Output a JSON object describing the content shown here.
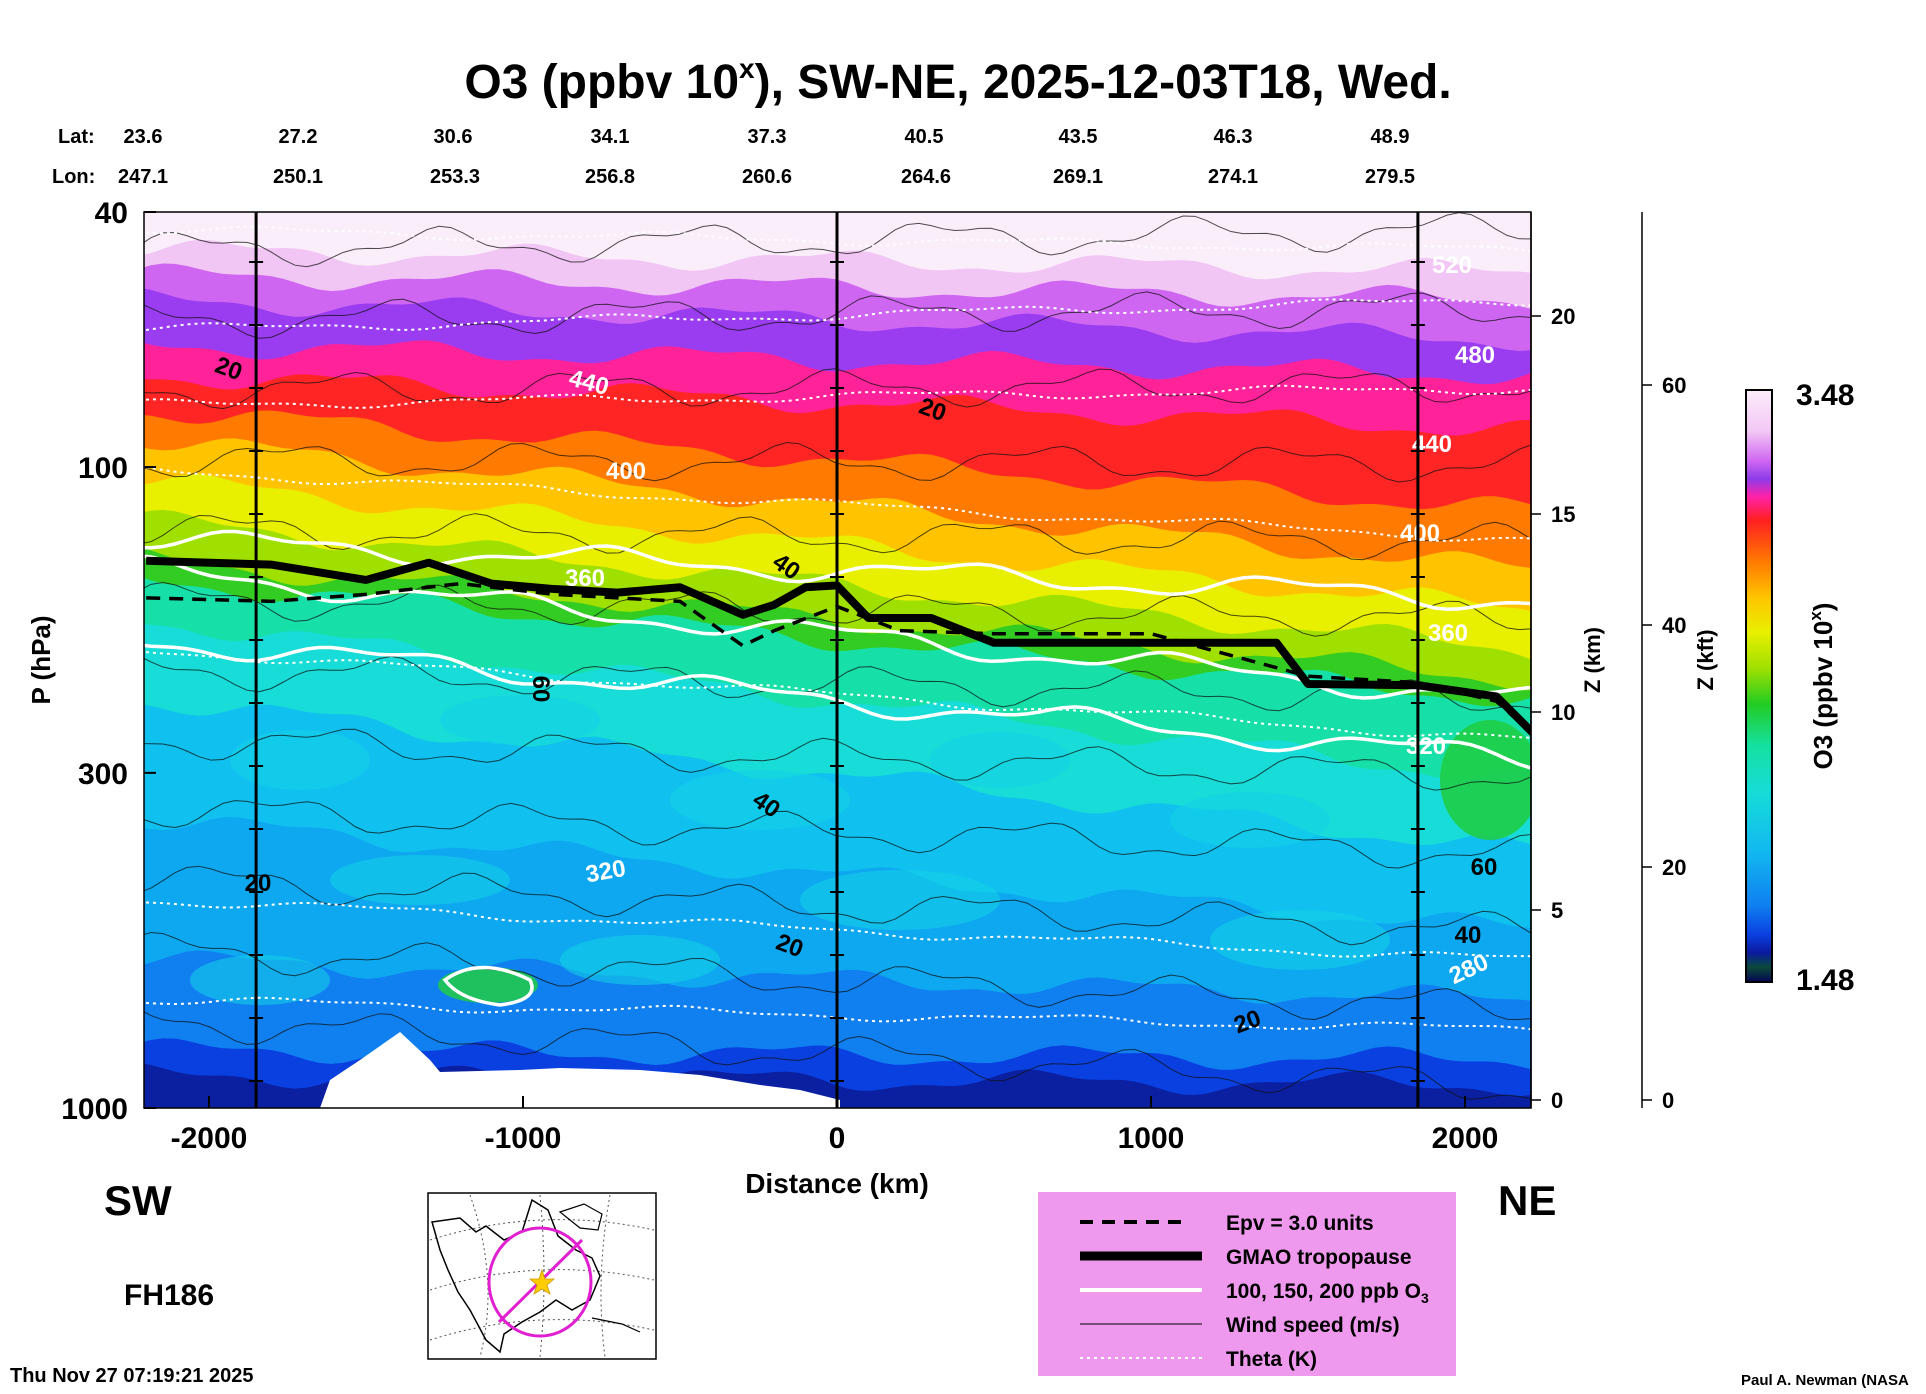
{
  "chart_data": {
    "type": "heatmap",
    "title": "O3 (ppbv 10",
    "title_sup": "x",
    "title_rest": "), SW-NE, 2025-12-03T18, Wed.",
    "xlabel": "Distance (km)",
    "ylabel": "P (hPa)",
    "zlabel": "Z (km)",
    "zkft_label": "Z (kft)",
    "colorbar_label": "O3 (ppbv 10",
    "colorbar_sup": "x",
    "colorbar_label_end": ")",
    "colorbar_range": [
      1.48,
      3.48
    ],
    "colorbar_max_label": "3.48",
    "colorbar_min_label": "1.48",
    "xlim": [
      -2200,
      2250
    ],
    "ylim": [
      1000,
      40
    ],
    "x_ticks": [
      -2000,
      -1000,
      0,
      1000,
      2000
    ],
    "x_tick_labels": [
      "-2000",
      "-1000",
      "0",
      "1000",
      "2000"
    ],
    "p_ticks": [
      40,
      100,
      300,
      1000
    ],
    "p_tick_labels": [
      "40",
      "100",
      "300",
      "1000"
    ],
    "z_km_ticks": [
      "0",
      "5",
      "10",
      "15",
      "20"
    ],
    "z_kft_ticks": [
      "0",
      "20",
      "40",
      "60"
    ],
    "lat_label": "Lat:",
    "lon_label": "Lon:",
    "lat": [
      "23.6",
      "27.2",
      "30.6",
      "34.1",
      "37.3",
      "40.5",
      "43.5",
      "46.3",
      "48.9"
    ],
    "lon": [
      "247.1",
      "250.1",
      "253.3",
      "256.8",
      "260.6",
      "264.6",
      "269.1",
      "274.1",
      "279.5"
    ],
    "vertical_lines_km": [
      -1850,
      0,
      1850
    ],
    "tropopause_hpa": {
      "x": [
        -2200,
        -1800,
        -1500,
        -1300,
        -1100,
        -900,
        -700,
        -500,
        -300,
        -200,
        -100,
        0,
        100,
        300,
        500,
        1000,
        1400,
        1500,
        1850,
        2100,
        2250
      ],
      "p": [
        140,
        142,
        150,
        141,
        152,
        155,
        157,
        154,
        170,
        164,
        154,
        153,
        172,
        172,
        188,
        188,
        188,
        218,
        219,
        228,
        270
      ]
    },
    "epv_hpa": {
      "x": [
        -2200,
        -1800,
        -1500,
        -1200,
        -900,
        -700,
        -500,
        -300,
        -200,
        0,
        200,
        500,
        1000,
        1500,
        1850,
        2100,
        2250
      ],
      "p": [
        160,
        162,
        158,
        152,
        158,
        160,
        162,
        190,
        180,
        165,
        180,
        182,
        182,
        212,
        217,
        232,
        270
      ]
    },
    "contour_labels": [
      "20",
      "20",
      "20",
      "20",
      "20",
      "40",
      "40",
      "40",
      "60",
      "60",
      "440",
      "400",
      "360",
      "320",
      "280",
      "520",
      "480",
      "440",
      "400",
      "360",
      "320"
    ],
    "left_label": "SW",
    "right_label": "NE",
    "forecast_hour": "FH186",
    "timestamp": "Thu Nov 27 07:19:21 2025",
    "credit": "Paul A. Newman (NASA",
    "legend": [
      {
        "name": "Epv = 3.0 units",
        "style": "dashed"
      },
      {
        "name": "GMAO tropopause",
        "style": "thick"
      },
      {
        "name": "100, 150, 200 ppb O",
        "sub": "3",
        "style": "white"
      },
      {
        "name": "Wind speed (m/s)",
        "style": "thin"
      },
      {
        "name": "Theta (K)",
        "style": "dotted"
      }
    ],
    "colors": {
      "legend_bg": "#ee99ee",
      "map_track": "#e020d0",
      "map_star": "#ffcc00"
    }
  }
}
